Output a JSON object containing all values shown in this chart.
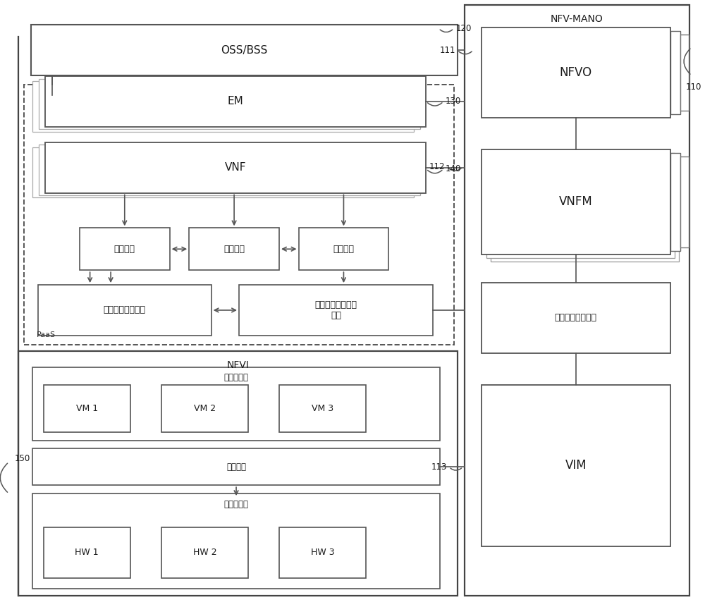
{
  "bg_color": "#ffffff",
  "lc": "#555555",
  "lc_light": "#aaaaaa",
  "labels": {
    "nfv_mano": "NFV-MANO",
    "nfvo": "NFVO",
    "vnfm": "VNFM",
    "vim": "VIM",
    "container_manager": "容器即服务管理器",
    "oss_bss": "OSS/BSS",
    "em": "EM",
    "vnf": "VNF",
    "dedicated_service": "专用服务",
    "public_service": "公共服务",
    "service_mgmt": "服务管理",
    "container_infra": "容器基础设施服务",
    "container_infra_mgmt": "容器基础设施服务\n管理",
    "nfvi": "NFVI",
    "virtual_resource_layer": "虚拟资源层",
    "vm1": "VM 1",
    "vm2": "VM 2",
    "vm3": "VM 3",
    "virtualization_layer": "虚拟化层",
    "hardware_layer": "硬件资源层",
    "hw1": "HW 1",
    "hw2": "HW 2",
    "hw3": "HW 3",
    "paas": "PaaS",
    "ref_110": "110",
    "ref_111": "111",
    "ref_112": "112",
    "ref_113": "113",
    "ref_120": "120",
    "ref_130": "130",
    "ref_140": "140",
    "ref_150": "150"
  }
}
